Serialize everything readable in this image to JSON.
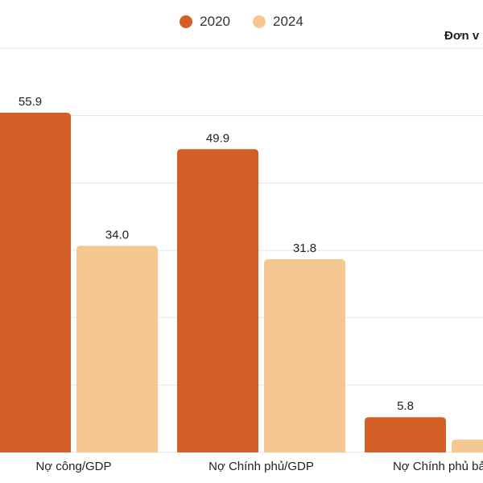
{
  "chart_data": {
    "type": "bar",
    "title": "",
    "unit_label": "Đơn v",
    "categories": [
      "Nợ công/GDP",
      "Nợ Chính phủ/GDP",
      "Nợ Chính phủ bảo lã"
    ],
    "series": [
      {
        "name": "2020",
        "color": "#d35f27",
        "values": [
          55.9,
          49.9,
          5.8
        ],
        "labels": [
          "55.9",
          "49.9",
          "5.8"
        ]
      },
      {
        "name": "2024",
        "color": "#f6c891",
        "values": [
          34.0,
          31.8,
          2.1
        ],
        "labels": [
          "34.0",
          "31.8",
          ""
        ]
      }
    ],
    "ylim": [
      0,
      66.5
    ],
    "grid": true,
    "legend_position": "top-center"
  }
}
